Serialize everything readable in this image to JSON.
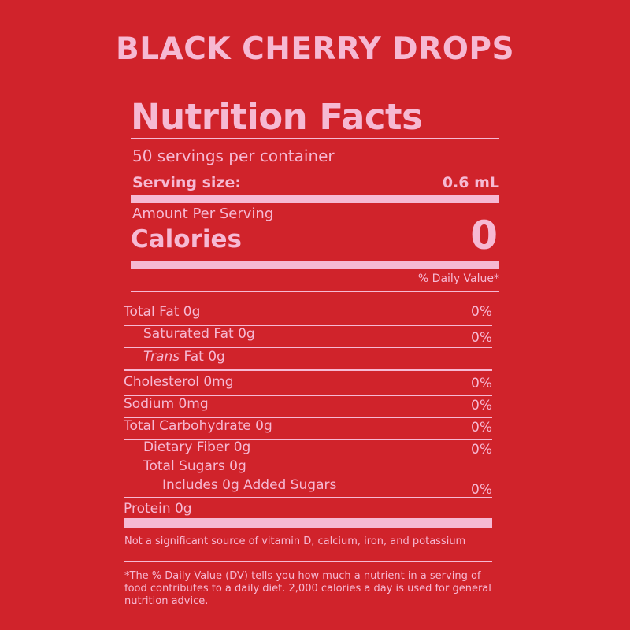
{
  "product": {
    "title": "BLACK CHERRY DROPS"
  },
  "label": {
    "heading": "Nutrition Facts",
    "servings_per_container": "50 servings per container",
    "serving_size_label": "Serving size:",
    "serving_size_value": "0.6 mL",
    "amount_per_serving": "Amount Per Serving",
    "calories_label": "Calories",
    "calories_value": "0",
    "daily_value_header": "% Daily Value*"
  },
  "nutrients": [
    {
      "label": "Total Fat 0g",
      "dv": "0%"
    },
    {
      "label": "Saturated Fat 0g",
      "dv": "0%"
    },
    {
      "label_italic": "Trans",
      "label_rest": " Fat 0g"
    },
    {
      "label": "Cholesterol 0mg",
      "dv": "0%"
    },
    {
      "label": "Sodium 0mg",
      "dv": "0%"
    },
    {
      "label": "Total Carbohydrate 0g",
      "dv": "0%"
    },
    {
      "label": "Dietary Fiber 0g",
      "dv": "0%"
    },
    {
      "label": "Total Sugars 0g"
    },
    {
      "label": "Includes 0g Added Sugars",
      "dv": "0%"
    },
    {
      "label": "Protein 0g"
    }
  ],
  "footnotes": {
    "vitamins": "Not a significant source of vitamin D, calcium, iron, and potassium",
    "daily_value": "*The % Daily Value (DV) tells you how much a nutrient in a serving of food contributes to a daily diet. 2,000 calories a day is used for general nutrition advice."
  },
  "colors": {
    "background": "#d0232b",
    "foreground": "#f6b9d3"
  }
}
